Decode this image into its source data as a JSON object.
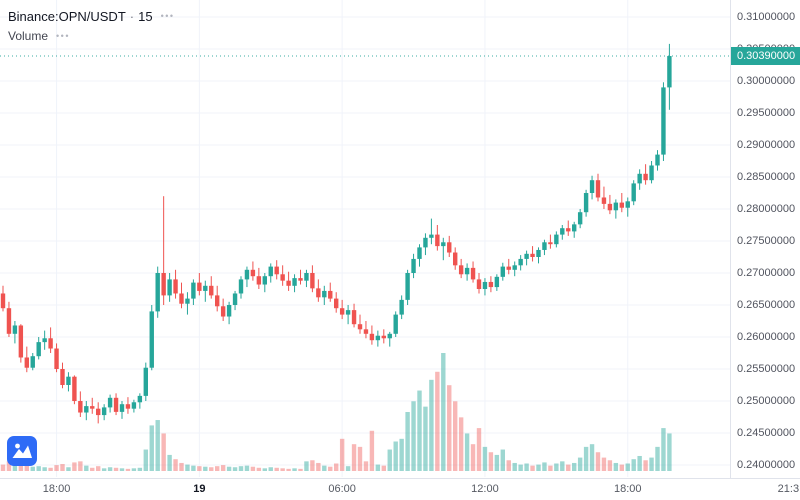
{
  "header": {
    "symbol": "Binance:OPN/USDT",
    "separator": "·",
    "interval": "15",
    "menu_dots": "•••",
    "indicator": {
      "name": "Volume",
      "menu_dots": "•••"
    }
  },
  "colors": {
    "up": "#26a69a",
    "down": "#ef5350",
    "vol_up": "rgba(38,166,154,0.45)",
    "vol_down": "rgba(239,83,80,0.42)",
    "grid": "#f0f3fa",
    "axis_border": "#e0e3eb",
    "axis_text": "#50535e",
    "badge_bg": "#26a69a",
    "badge_text": "#ffffff",
    "logo_bg": "#2e6bf6"
  },
  "price_axis": {
    "labels": [
      "0.31000000",
      "0.30500000",
      "0.30000000",
      "0.29500000",
      "0.29000000",
      "0.28500000",
      "0.28000000",
      "0.27500000",
      "0.27000000",
      "0.26500000",
      "0.26000000",
      "0.25500000",
      "0.25000000",
      "0.24500000",
      "0.24000000"
    ]
  },
  "time_axis": {
    "ticks": [
      {
        "label": "18:00",
        "ci": 9
      },
      {
        "label": "19",
        "ci": 33,
        "bold": true
      },
      {
        "label": "06:00",
        "ci": 57
      },
      {
        "label": "12:00",
        "ci": 81
      },
      {
        "label": "18:00",
        "ci": 105
      },
      {
        "label": "21:3",
        "ci": 132
      }
    ]
  },
  "last_price": {
    "value": "0.30390000",
    "price": 0.3039
  },
  "chart_data": {
    "type": "candlestick",
    "title": "Binance:OPN/USDT",
    "interval_minutes": 15,
    "ylim": [
      0.24,
      0.31
    ],
    "y_tick_step": 0.005,
    "legend_indicator": "Volume",
    "columns": [
      "open",
      "high",
      "low",
      "close",
      "volume"
    ],
    "candles": [
      [
        0.2668,
        0.268,
        0.264,
        0.2645,
        12
      ],
      [
        0.2645,
        0.2655,
        0.26,
        0.2605,
        18
      ],
      [
        0.2605,
        0.2625,
        0.259,
        0.2618,
        10
      ],
      [
        0.2618,
        0.262,
        0.256,
        0.2568,
        22
      ],
      [
        0.2568,
        0.2585,
        0.2545,
        0.2552,
        14
      ],
      [
        0.2552,
        0.2575,
        0.2548,
        0.257,
        8
      ],
      [
        0.257,
        0.26,
        0.2565,
        0.2592,
        9
      ],
      [
        0.2592,
        0.261,
        0.258,
        0.2598,
        7
      ],
      [
        0.2598,
        0.2615,
        0.2575,
        0.2582,
        6
      ],
      [
        0.2582,
        0.259,
        0.2545,
        0.255,
        11
      ],
      [
        0.255,
        0.256,
        0.252,
        0.2525,
        13
      ],
      [
        0.2525,
        0.2545,
        0.2515,
        0.2538,
        7
      ],
      [
        0.2538,
        0.254,
        0.2495,
        0.25,
        16
      ],
      [
        0.25,
        0.2515,
        0.2475,
        0.2482,
        18
      ],
      [
        0.2482,
        0.25,
        0.247,
        0.2492,
        10
      ],
      [
        0.2492,
        0.2505,
        0.248,
        0.2488,
        6
      ],
      [
        0.2488,
        0.2498,
        0.2465,
        0.2478,
        9
      ],
      [
        0.2478,
        0.2495,
        0.247,
        0.249,
        5
      ],
      [
        0.249,
        0.251,
        0.2482,
        0.2505,
        7
      ],
      [
        0.2505,
        0.2512,
        0.2478,
        0.2483,
        6
      ],
      [
        0.2483,
        0.25,
        0.2472,
        0.2495,
        5
      ],
      [
        0.2495,
        0.2506,
        0.248,
        0.2488,
        4
      ],
      [
        0.2488,
        0.2502,
        0.2482,
        0.2498,
        5
      ],
      [
        0.2498,
        0.2512,
        0.2488,
        0.2508,
        6
      ],
      [
        0.2508,
        0.256,
        0.25,
        0.2552,
        40
      ],
      [
        0.2552,
        0.265,
        0.2548,
        0.264,
        85
      ],
      [
        0.264,
        0.271,
        0.263,
        0.27,
        95
      ],
      [
        0.27,
        0.282,
        0.265,
        0.2665,
        70
      ],
      [
        0.2665,
        0.27,
        0.2655,
        0.269,
        30
      ],
      [
        0.269,
        0.2705,
        0.266,
        0.2668,
        22
      ],
      [
        0.2668,
        0.2685,
        0.2645,
        0.2652,
        15
      ],
      [
        0.2652,
        0.267,
        0.2635,
        0.266,
        12
      ],
      [
        0.266,
        0.269,
        0.265,
        0.2685,
        10
      ],
      [
        0.2685,
        0.27,
        0.2665,
        0.2672,
        9
      ],
      [
        0.2672,
        0.2688,
        0.2655,
        0.268,
        8
      ],
      [
        0.268,
        0.2695,
        0.266,
        0.2665,
        7
      ],
      [
        0.2665,
        0.268,
        0.264,
        0.2648,
        9
      ],
      [
        0.2648,
        0.266,
        0.2625,
        0.2632,
        11
      ],
      [
        0.2632,
        0.2655,
        0.262,
        0.265,
        8
      ],
      [
        0.265,
        0.2672,
        0.2642,
        0.2668,
        7
      ],
      [
        0.2668,
        0.2695,
        0.266,
        0.269,
        9
      ],
      [
        0.269,
        0.271,
        0.2678,
        0.2705,
        10
      ],
      [
        0.2705,
        0.2718,
        0.2688,
        0.2695,
        8
      ],
      [
        0.2695,
        0.2708,
        0.2675,
        0.2682,
        6
      ],
      [
        0.2682,
        0.27,
        0.267,
        0.2695,
        5
      ],
      [
        0.2695,
        0.2715,
        0.2685,
        0.271,
        7
      ],
      [
        0.271,
        0.272,
        0.269,
        0.2698,
        6
      ],
      [
        0.2698,
        0.2712,
        0.268,
        0.2688,
        5
      ],
      [
        0.2688,
        0.2702,
        0.2672,
        0.268,
        4
      ],
      [
        0.268,
        0.2698,
        0.267,
        0.2692,
        5
      ],
      [
        0.2692,
        0.2705,
        0.2682,
        0.2688,
        4
      ],
      [
        0.2688,
        0.2705,
        0.2678,
        0.27,
        18
      ],
      [
        0.27,
        0.2712,
        0.267,
        0.2676,
        20
      ],
      [
        0.2676,
        0.269,
        0.2655,
        0.2662,
        15
      ],
      [
        0.2662,
        0.268,
        0.265,
        0.2672,
        10
      ],
      [
        0.2672,
        0.2685,
        0.2655,
        0.266,
        8
      ],
      [
        0.266,
        0.267,
        0.2638,
        0.2645,
        14
      ],
      [
        0.2645,
        0.2658,
        0.2628,
        0.2635,
        60
      ],
      [
        0.2635,
        0.265,
        0.262,
        0.2642,
        9
      ],
      [
        0.2642,
        0.2652,
        0.2615,
        0.262,
        50
      ],
      [
        0.262,
        0.2635,
        0.2605,
        0.2612,
        45
      ],
      [
        0.2612,
        0.2625,
        0.2598,
        0.2605,
        18
      ],
      [
        0.2605,
        0.2618,
        0.2588,
        0.2595,
        75
      ],
      [
        0.2595,
        0.261,
        0.2585,
        0.2602,
        12
      ],
      [
        0.2602,
        0.2612,
        0.259,
        0.2598,
        10
      ],
      [
        0.2598,
        0.2608,
        0.2585,
        0.2605,
        40
      ],
      [
        0.2605,
        0.264,
        0.26,
        0.2635,
        55
      ],
      [
        0.2635,
        0.2665,
        0.2628,
        0.2658,
        60
      ],
      [
        0.2658,
        0.2705,
        0.265,
        0.27,
        110
      ],
      [
        0.27,
        0.273,
        0.2692,
        0.2722,
        130
      ],
      [
        0.2722,
        0.2745,
        0.271,
        0.274,
        150
      ],
      [
        0.274,
        0.2762,
        0.2728,
        0.2755,
        120
      ],
      [
        0.2755,
        0.2785,
        0.2745,
        0.276,
        170
      ],
      [
        0.276,
        0.2775,
        0.2735,
        0.2742,
        185
      ],
      [
        0.2742,
        0.2755,
        0.272,
        0.2748,
        220
      ],
      [
        0.2748,
        0.2758,
        0.2725,
        0.2732,
        160
      ],
      [
        0.2732,
        0.274,
        0.2705,
        0.2712,
        130
      ],
      [
        0.2712,
        0.2722,
        0.2692,
        0.2698,
        100
      ],
      [
        0.2698,
        0.2715,
        0.2688,
        0.2708,
        70
      ],
      [
        0.2708,
        0.2718,
        0.2685,
        0.269,
        50
      ],
      [
        0.269,
        0.27,
        0.2668,
        0.2675,
        80
      ],
      [
        0.2675,
        0.2692,
        0.2665,
        0.2686,
        45
      ],
      [
        0.2686,
        0.2695,
        0.267,
        0.2678,
        35
      ],
      [
        0.2678,
        0.2698,
        0.2672,
        0.2694,
        30
      ],
      [
        0.2694,
        0.2716,
        0.2688,
        0.271,
        40
      ],
      [
        0.271,
        0.2722,
        0.2698,
        0.2705,
        20
      ],
      [
        0.2705,
        0.2718,
        0.2695,
        0.2712,
        15
      ],
      [
        0.2712,
        0.2728,
        0.2704,
        0.2722,
        12
      ],
      [
        0.2722,
        0.2735,
        0.2712,
        0.273,
        14
      ],
      [
        0.273,
        0.2742,
        0.2718,
        0.2725,
        10
      ],
      [
        0.2725,
        0.274,
        0.2715,
        0.2736,
        12
      ],
      [
        0.2736,
        0.2752,
        0.2728,
        0.2748,
        16
      ],
      [
        0.2748,
        0.276,
        0.2738,
        0.2745,
        10
      ],
      [
        0.2745,
        0.2765,
        0.274,
        0.276,
        14
      ],
      [
        0.276,
        0.2775,
        0.2752,
        0.277,
        18
      ],
      [
        0.277,
        0.2782,
        0.2758,
        0.2765,
        12
      ],
      [
        0.2765,
        0.278,
        0.2755,
        0.2776,
        15
      ],
      [
        0.2776,
        0.28,
        0.277,
        0.2795,
        25
      ],
      [
        0.2795,
        0.283,
        0.2788,
        0.2825,
        45
      ],
      [
        0.2825,
        0.2852,
        0.2815,
        0.2845,
        50
      ],
      [
        0.2845,
        0.2855,
        0.2812,
        0.2818,
        35
      ],
      [
        0.2818,
        0.2835,
        0.28,
        0.2808,
        25
      ],
      [
        0.2808,
        0.2822,
        0.2792,
        0.2798,
        20
      ],
      [
        0.2798,
        0.2815,
        0.2785,
        0.281,
        15
      ],
      [
        0.281,
        0.2825,
        0.2795,
        0.2802,
        12
      ],
      [
        0.2802,
        0.2818,
        0.2788,
        0.2812,
        14
      ],
      [
        0.2812,
        0.2845,
        0.2806,
        0.284,
        22
      ],
      [
        0.284,
        0.2862,
        0.283,
        0.2855,
        28
      ],
      [
        0.2855,
        0.287,
        0.2838,
        0.2845,
        20
      ],
      [
        0.2845,
        0.2875,
        0.284,
        0.2868,
        25
      ],
      [
        0.2868,
        0.2892,
        0.286,
        0.2885,
        45
      ],
      [
        0.2885,
        0.2998,
        0.2875,
        0.299,
        80
      ],
      [
        0.299,
        0.3058,
        0.2955,
        0.3039,
        70
      ]
    ]
  }
}
